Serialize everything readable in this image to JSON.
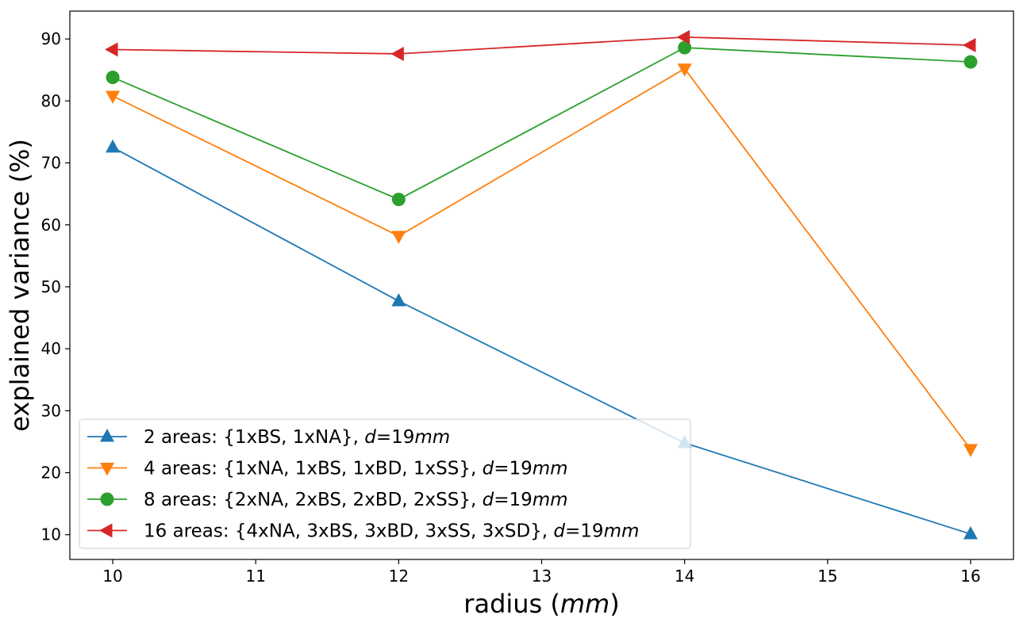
{
  "chart_data": {
    "type": "line",
    "title": "",
    "xlabel": {
      "text": "radius (",
      "italic": "mm",
      "suffix": ")"
    },
    "ylabel": "explained variance (%)",
    "x": [
      10,
      12,
      14,
      16
    ],
    "xlim": [
      9.7,
      16.3
    ],
    "ylim": [
      6,
      94.5
    ],
    "xticks": [
      10,
      11,
      12,
      13,
      14,
      15,
      16
    ],
    "yticks": [
      10,
      20,
      30,
      40,
      50,
      60,
      70,
      80,
      90
    ],
    "grid": false,
    "legend_position": "lower-left",
    "series": [
      {
        "name": "2 areas: {1xBS, 1xNA}, d=19mm",
        "legend": {
          "prefix": "2 areas: {1xBS, 1xNA}, "
        },
        "color": "#1f77b4",
        "marker": "triangle-up",
        "values": [
          72.5,
          47.7,
          24.8,
          10.1
        ]
      },
      {
        "name": "4 areas: {1xNA, 1xBS, 1xBD, 1xSS}, d=19mm",
        "legend": {
          "prefix": "4 areas: {1xNA, 1xBS, 1xBD, 1xSS}, "
        },
        "color": "#ff7f0e",
        "marker": "triangle-down",
        "values": [
          80.8,
          58.2,
          85.2,
          23.8
        ]
      },
      {
        "name": "8 areas: {2xNA, 2xBS, 2xBD, 2xSS}, d=19mm",
        "legend": {
          "prefix": "8 areas: {2xNA, 2xBS, 2xBD, 2xSS}, "
        },
        "color": "#2ca02c",
        "marker": "circle",
        "values": [
          83.8,
          64.1,
          88.6,
          86.3
        ]
      },
      {
        "name": "16 areas: {4xNA, 3xBS, 3xBD, 3xSS, 3xSD}, d=19mm",
        "legend": {
          "prefix": "16 areas: {4xNA, 3xBS, 3xBD, 3xSS, 3xSD}, "
        },
        "color": "#d62728",
        "marker": "triangle-left",
        "values": [
          88.3,
          87.6,
          90.3,
          89.0
        ]
      }
    ],
    "legend_suffix": {
      "var": "d",
      "eq": "=19",
      "unit": "mm"
    }
  }
}
